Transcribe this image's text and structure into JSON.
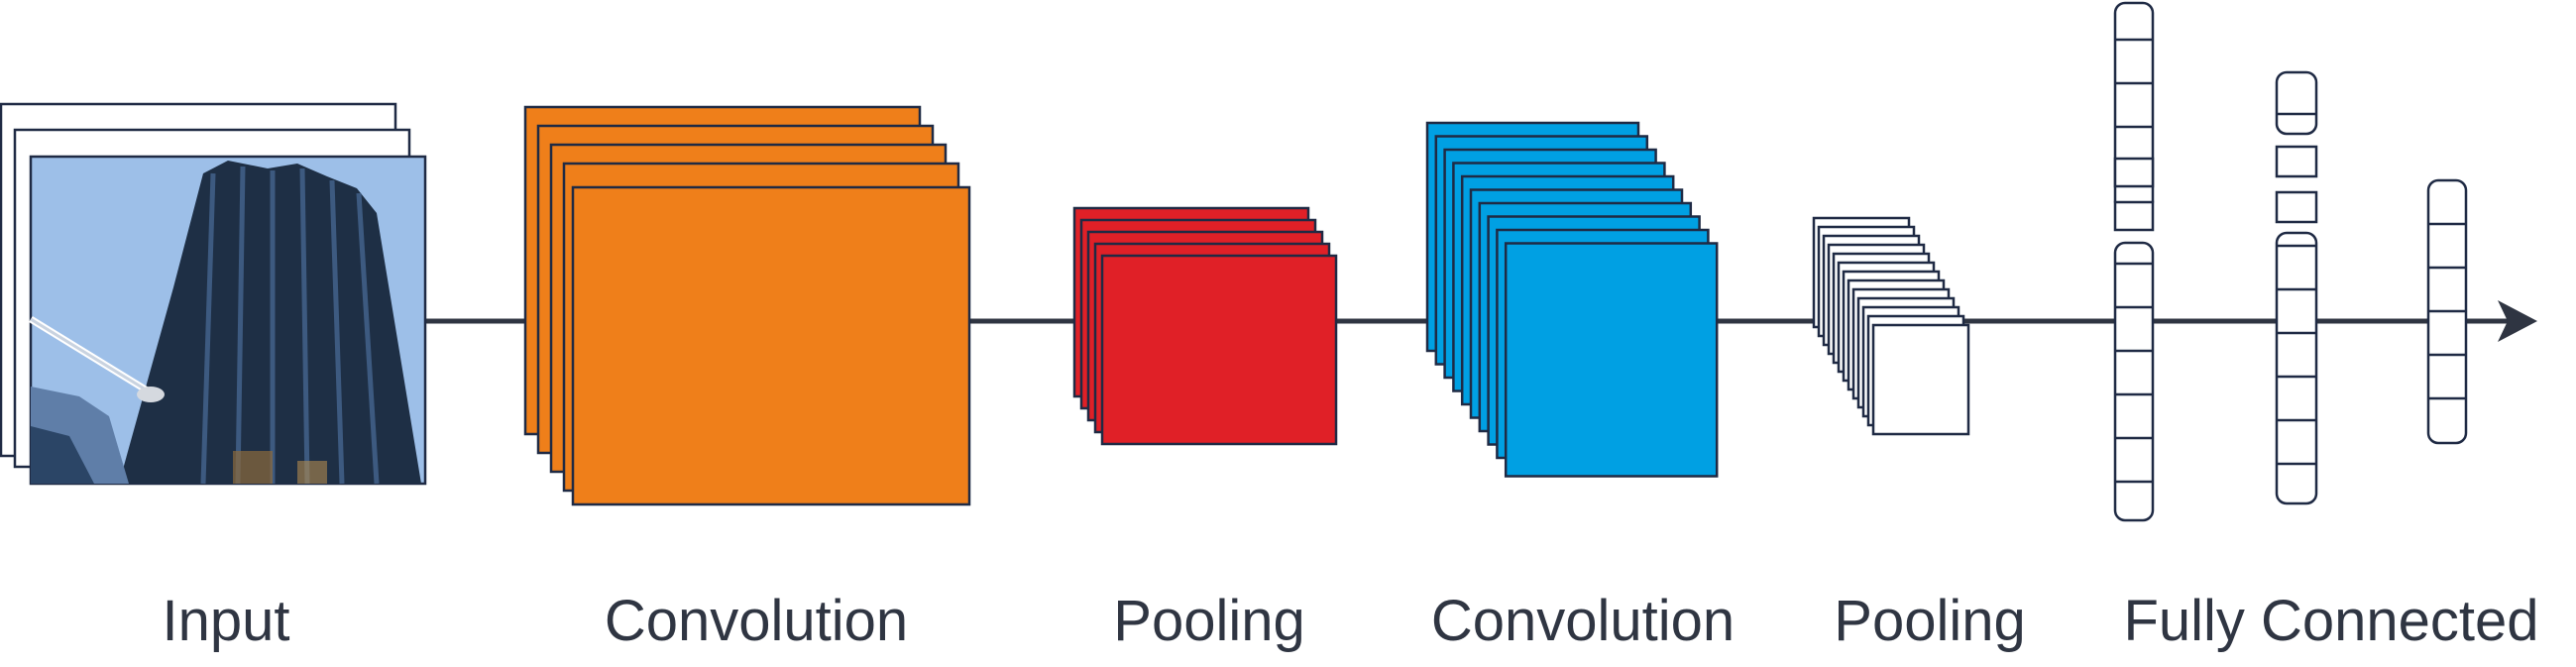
{
  "labels": {
    "input": "Input",
    "conv1": "Convolution",
    "pool1": "Pooling",
    "conv2": "Convolution",
    "pool2": "Pooling",
    "fc": "Fully Connected"
  },
  "colors": {
    "axis": "#2f3542",
    "conv1": "#ef7f1a",
    "pool1": "#e02027",
    "conv2": "#00a0e3",
    "pool2": "#ffffff",
    "outline": "#1f2a44",
    "sky": "#9dbfe8",
    "building": "#1e2f45"
  },
  "icons": {
    "input_image": "skyscraper-photo-icon",
    "flow_arrow": "arrow-right-icon"
  }
}
